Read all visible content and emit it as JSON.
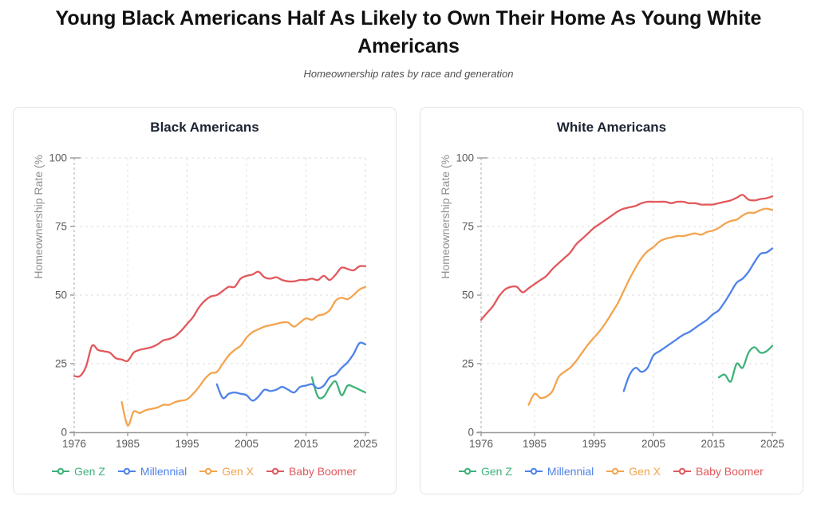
{
  "header": {
    "title": "Young Black Americans Half As Likely to Own Their Home As Young White Americans",
    "subtitle": "Homeownership rates by race and generation"
  },
  "colors": {
    "gen_z": "#3eb27a",
    "millennial": "#4e82e9",
    "gen_x": "#f3a44e",
    "baby_boomer": "#e1585c",
    "grid": "#dedede",
    "axis_line": "#9a9a9a",
    "axis_dashed": "#ababab",
    "tick_label": "#5a5a5a",
    "axis_title": "#919191",
    "card_border": "#e4e4e4",
    "card_title_text": "#1d2433"
  },
  "legend": {
    "items": [
      {
        "label": "Gen Z",
        "color_key": "gen_z"
      },
      {
        "label": "Millennial",
        "color_key": "millennial"
      },
      {
        "label": "Gen X",
        "color_key": "gen_x"
      },
      {
        "label": "Baby Boomer",
        "color_key": "baby_boomer"
      }
    ]
  },
  "chart_data": [
    {
      "type": "line",
      "title": "Black Americans",
      "xlabel": "",
      "ylabel": "Homeownership Rate (%",
      "xlim": [
        1976,
        2025
      ],
      "ylim": [
        0,
        100
      ],
      "x_ticks": [
        1976,
        1985,
        1995,
        2005,
        2015,
        2025
      ],
      "y_ticks": [
        0,
        25,
        50,
        75,
        100
      ],
      "grid": "dashed",
      "legend_position": "bottom-left",
      "series": [
        {
          "name": "Gen Z",
          "color_key": "gen_z",
          "x": [
            2016,
            2017,
            2018,
            2019,
            2020,
            2021,
            2022,
            2023,
            2024,
            2025
          ],
          "y": [
            20,
            13,
            13,
            16.5,
            18.5,
            13.5,
            17,
            16.5,
            15.5,
            14.5
          ]
        },
        {
          "name": "Millennial",
          "color_key": "millennial",
          "x": [
            2000,
            2001,
            2002,
            2003,
            2004,
            2005,
            2006,
            2007,
            2008,
            2009,
            2010,
            2011,
            2012,
            2013,
            2014,
            2015,
            2016,
            2017,
            2018,
            2019,
            2020,
            2021,
            2022,
            2023,
            2024,
            2025
          ],
          "y": [
            17.5,
            12.5,
            14,
            14.5,
            14,
            13.5,
            11.5,
            13,
            15.5,
            15,
            15.5,
            16.5,
            15.5,
            14.5,
            16.5,
            17,
            17.5,
            16,
            17,
            20,
            21,
            23.5,
            25.5,
            28.5,
            32.5,
            32
          ]
        },
        {
          "name": "Gen X",
          "color_key": "gen_x",
          "x": [
            1984,
            1985,
            1986,
            1987,
            1988,
            1989,
            1990,
            1991,
            1992,
            1993,
            1994,
            1995,
            1996,
            1997,
            1998,
            1999,
            2000,
            2001,
            2002,
            2003,
            2004,
            2005,
            2006,
            2007,
            2008,
            2009,
            2010,
            2011,
            2012,
            2013,
            2014,
            2015,
            2016,
            2017,
            2018,
            2019,
            2020,
            2021,
            2022,
            2023,
            2024,
            2025
          ],
          "y": [
            11,
            2.5,
            7.5,
            7,
            8,
            8.5,
            9,
            10,
            10,
            11,
            11.5,
            12,
            14,
            16.5,
            19.5,
            21.5,
            22,
            25,
            28,
            30,
            31.5,
            34.5,
            36.5,
            37.5,
            38.5,
            39,
            39.5,
            40,
            40,
            38.5,
            40,
            41.5,
            41,
            42.5,
            43,
            44.5,
            48,
            49,
            48.5,
            50,
            52,
            53
          ]
        },
        {
          "name": "Baby Boomer",
          "color_key": "baby_boomer",
          "x": [
            1976,
            1977,
            1978,
            1979,
            1980,
            1981,
            1982,
            1983,
            1984,
            1985,
            1986,
            1987,
            1988,
            1989,
            1990,
            1991,
            1992,
            1993,
            1994,
            1995,
            1996,
            1997,
            1998,
            1999,
            2000,
            2001,
            2002,
            2003,
            2004,
            2005,
            2006,
            2007,
            2008,
            2009,
            2010,
            2011,
            2012,
            2013,
            2014,
            2015,
            2016,
            2017,
            2018,
            2019,
            2020,
            2021,
            2022,
            2023,
            2024,
            2025
          ],
          "y": [
            20.5,
            20.5,
            24,
            31.5,
            30,
            29.5,
            29,
            27,
            26.5,
            26,
            29,
            30,
            30.5,
            31,
            32,
            33.5,
            34,
            35,
            37,
            39.5,
            42,
            45.5,
            48,
            49.5,
            50,
            51.5,
            53,
            53,
            56,
            57,
            57.5,
            58.5,
            56.5,
            56,
            56.5,
            55.5,
            55,
            55,
            55.5,
            55.5,
            56,
            55.5,
            57,
            55.5,
            57.5,
            60,
            59.5,
            59,
            60.5,
            60.5
          ]
        }
      ]
    },
    {
      "type": "line",
      "title": "White Americans",
      "xlabel": "",
      "ylabel": "Homeownership Rate (%",
      "xlim": [
        1976,
        2025
      ],
      "ylim": [
        0,
        100
      ],
      "x_ticks": [
        1976,
        1985,
        1995,
        2005,
        2015,
        2025
      ],
      "y_ticks": [
        0,
        25,
        50,
        75,
        100
      ],
      "grid": "dashed",
      "legend_position": "bottom-left",
      "series": [
        {
          "name": "Gen Z",
          "color_key": "gen_z",
          "x": [
            2016,
            2017,
            2018,
            2019,
            2020,
            2021,
            2022,
            2023,
            2024,
            2025
          ],
          "y": [
            20,
            21,
            18.5,
            25,
            23.5,
            29,
            31,
            29,
            29.5,
            31.5
          ]
        },
        {
          "name": "Millennial",
          "color_key": "millennial",
          "x": [
            2000,
            2001,
            2002,
            2003,
            2004,
            2005,
            2006,
            2007,
            2008,
            2009,
            2010,
            2011,
            2012,
            2013,
            2014,
            2015,
            2016,
            2017,
            2018,
            2019,
            2020,
            2021,
            2022,
            2023,
            2024,
            2025
          ],
          "y": [
            15,
            21,
            23.5,
            22,
            23.5,
            28,
            29.5,
            31,
            32.5,
            34,
            35.5,
            36.5,
            38,
            39.5,
            41,
            43,
            44.5,
            47.5,
            51,
            54.5,
            56,
            58.5,
            62,
            65,
            65.5,
            67
          ]
        },
        {
          "name": "Gen X",
          "color_key": "gen_x",
          "x": [
            1984,
            1985,
            1986,
            1987,
            1988,
            1989,
            1990,
            1991,
            1992,
            1993,
            1994,
            1995,
            1996,
            1997,
            1998,
            1999,
            2000,
            2001,
            2002,
            2003,
            2004,
            2005,
            2006,
            2007,
            2008,
            2009,
            2010,
            2011,
            2012,
            2013,
            2014,
            2015,
            2016,
            2017,
            2018,
            2019,
            2020,
            2021,
            2022,
            2023,
            2024,
            2025
          ],
          "y": [
            10,
            14,
            12.5,
            13,
            15,
            20,
            22,
            23.5,
            26,
            29,
            32,
            34.5,
            37,
            40,
            43.5,
            47,
            51.5,
            56,
            60,
            63.5,
            66,
            67.5,
            69.5,
            70.5,
            71,
            71.5,
            71.5,
            72,
            72.5,
            72,
            73,
            73.5,
            74.5,
            76,
            77,
            77.5,
            79,
            80,
            80,
            81,
            81.5,
            81
          ]
        },
        {
          "name": "Baby Boomer",
          "color_key": "baby_boomer",
          "x": [
            1976,
            1977,
            1978,
            1979,
            1980,
            1981,
            1982,
            1983,
            1984,
            1985,
            1986,
            1987,
            1988,
            1989,
            1990,
            1991,
            1992,
            1993,
            1994,
            1995,
            1996,
            1997,
            1998,
            1999,
            2000,
            2001,
            2002,
            2003,
            2004,
            2005,
            2006,
            2007,
            2008,
            2009,
            2010,
            2011,
            2012,
            2013,
            2014,
            2015,
            2016,
            2017,
            2018,
            2019,
            2020,
            2021,
            2022,
            2023,
            2024,
            2025
          ],
          "y": [
            41,
            43.5,
            46,
            49.5,
            52,
            53,
            53,
            51,
            52.5,
            54,
            55.5,
            57,
            59.5,
            61.5,
            63.5,
            65.5,
            68.5,
            70.5,
            72.5,
            74.5,
            76,
            77.5,
            79,
            80.5,
            81.5,
            82,
            82.5,
            83.5,
            84,
            84,
            84,
            84,
            83.5,
            84,
            84,
            83.5,
            83.5,
            83,
            83,
            83,
            83.5,
            84,
            84.5,
            85.5,
            86.5,
            84.8,
            84.5,
            85,
            85.3,
            86
          ]
        }
      ]
    }
  ]
}
